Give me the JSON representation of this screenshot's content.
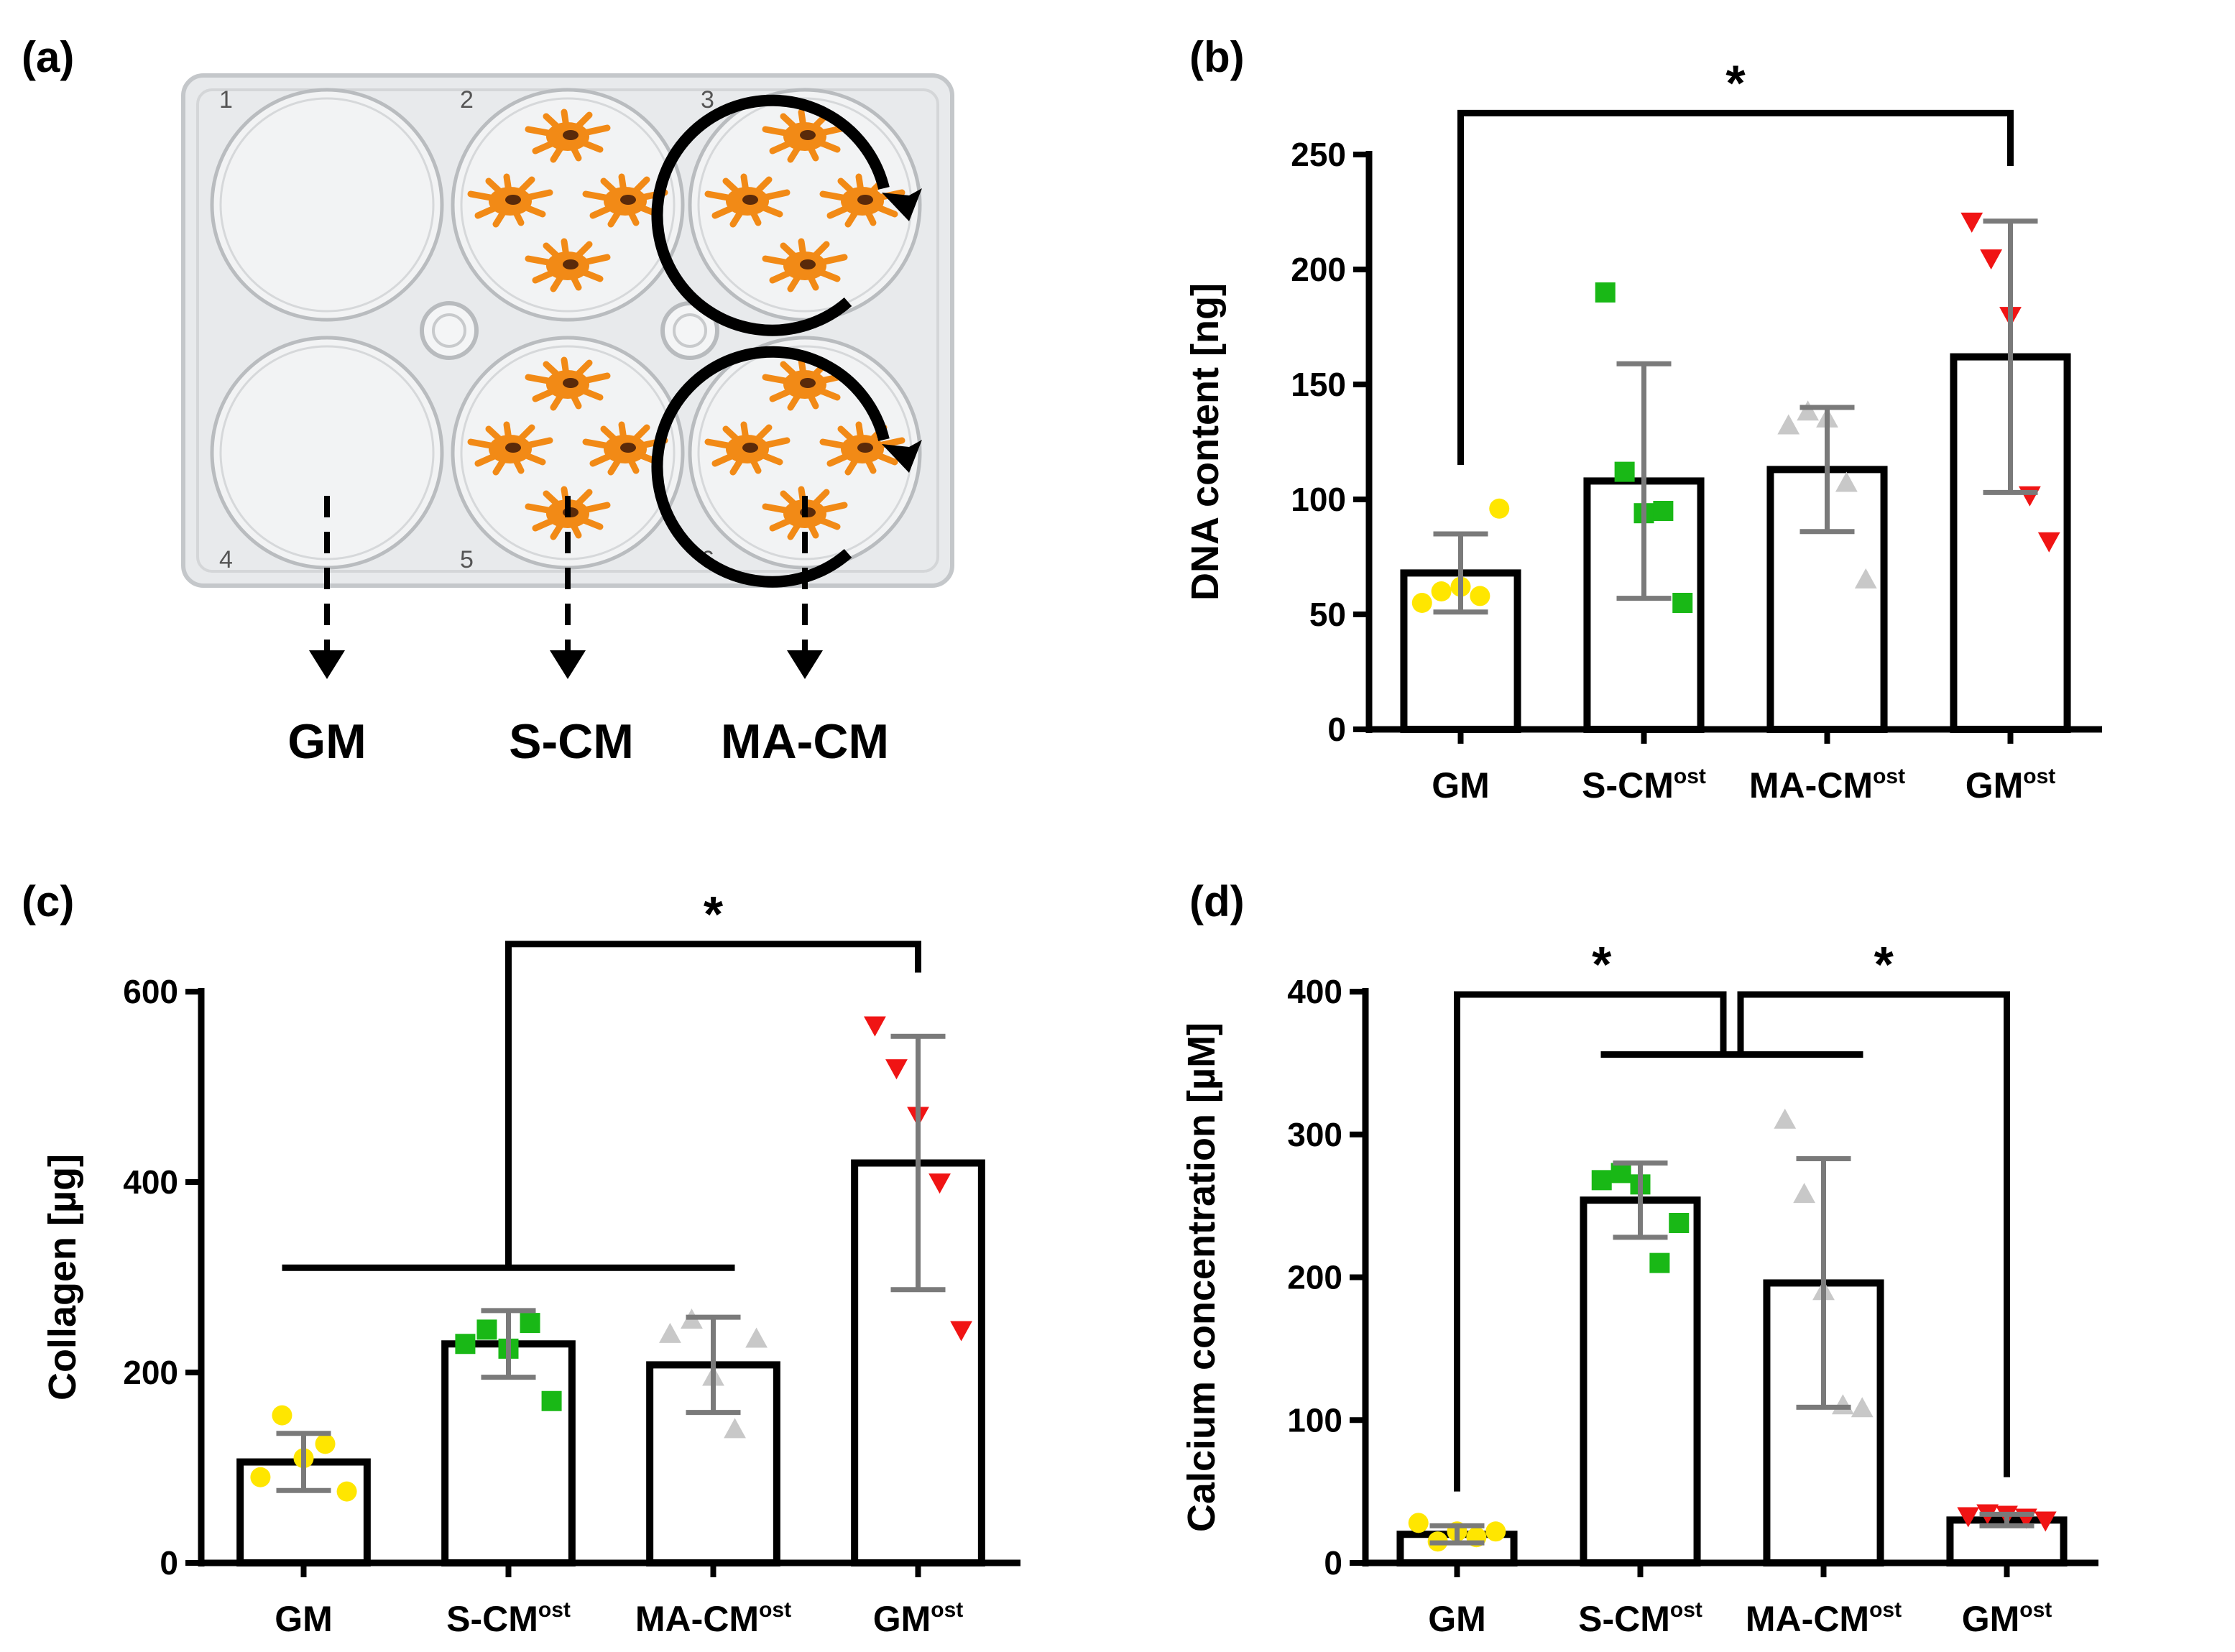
{
  "panels": {
    "a": "(a)",
    "b": "(b)",
    "c": "(c)",
    "d": "(d)"
  },
  "plate": {
    "well_numbers": [
      "1",
      "2",
      "3",
      "4",
      "5",
      "6"
    ],
    "media_labels": [
      "GM",
      "S-CM",
      "MA-CM"
    ],
    "colors": {
      "cell": "#f28a16",
      "nucleus": "#5a2a0a",
      "plate": "#e4e6e8"
    },
    "cells_per_well": 4
  },
  "colors": {
    "GM": "#ffe600",
    "S-CM": "#19b816",
    "MA-CM": "#c8c8c8",
    "GMost": "#f01414",
    "errorbar": "#7a7a7a",
    "axis": "#000000"
  },
  "chart_data": [
    {
      "id": "b",
      "type": "bar",
      "ylabel": "DNA content [ng]",
      "ylim": [
        0,
        250
      ],
      "yticks": [
        0,
        50,
        100,
        150,
        200,
        250
      ],
      "categories": [
        {
          "base": "GM",
          "sup": ""
        },
        {
          "base": "S-CM",
          "sup": "ost"
        },
        {
          "base": "MA-CM",
          "sup": "ost"
        },
        {
          "base": "GM",
          "sup": "ost"
        }
      ],
      "values": [
        68,
        108,
        113,
        162
      ],
      "sd": [
        17,
        51,
        27,
        59
      ],
      "points": [
        [
          55,
          60,
          62,
          58,
          96
        ],
        [
          190,
          112,
          94,
          95,
          55
        ],
        [
          132,
          138,
          135,
          107,
          65
        ],
        [
          221,
          205,
          180,
          102,
          82
        ]
      ],
      "markers": [
        "circle",
        "square",
        "triangle-up",
        "triangle-down"
      ],
      "significance": [
        {
          "from": 0,
          "to": 3,
          "label": "*",
          "y": 268,
          "legs_to": [
            115,
            245
          ]
        }
      ]
    },
    {
      "id": "c",
      "type": "bar",
      "ylabel": "Collagen [µg]",
      "ylim": [
        0,
        600
      ],
      "yticks": [
        0,
        200,
        400,
        600
      ],
      "categories": [
        {
          "base": "GM",
          "sup": ""
        },
        {
          "base": "S-CM",
          "sup": "ost"
        },
        {
          "base": "MA-CM",
          "sup": "ost"
        },
        {
          "base": "GM",
          "sup": "ost"
        }
      ],
      "values": [
        106,
        230,
        208,
        420
      ],
      "sd": [
        30,
        35,
        50,
        133
      ],
      "points": [
        [
          90,
          155,
          110,
          125,
          75
        ],
        [
          230,
          245,
          225,
          252,
          170
        ],
        [
          240,
          255,
          195,
          140,
          235
        ],
        [
          565,
          520,
          470,
          400,
          245
        ]
      ],
      "markers": [
        "circle",
        "square",
        "triangle-up",
        "triangle-down"
      ],
      "significance": [
        {
          "group_from": 0,
          "group_to": 2,
          "group_y": 310,
          "target": 3,
          "label": "*",
          "y": 650,
          "target_leg_to": 620
        }
      ]
    },
    {
      "id": "d",
      "type": "bar",
      "ylabel": "Calcium concentration [µM]",
      "ylim": [
        0,
        400
      ],
      "yticks": [
        0,
        100,
        200,
        300,
        400
      ],
      "categories": [
        {
          "base": "GM",
          "sup": ""
        },
        {
          "base": "S-CM",
          "sup": "ost"
        },
        {
          "base": "MA-CM",
          "sup": "ost"
        },
        {
          "base": "GM",
          "sup": "ost"
        }
      ],
      "values": [
        20,
        254,
        196,
        30
      ],
      "sd": [
        6,
        26,
        87,
        4
      ],
      "points": [
        [
          28,
          15,
          22,
          18,
          22
        ],
        [
          268,
          273,
          265,
          210,
          238
        ],
        [
          310,
          258,
          190,
          110,
          108
        ],
        [
          33,
          35,
          34,
          32,
          30
        ]
      ],
      "markers": [
        "circle",
        "square",
        "triangle-up",
        "triangle-down"
      ],
      "significance": [
        {
          "group_from": 1,
          "group_to": 2,
          "group_y": 356,
          "left": 0,
          "right": 3,
          "label": "*",
          "y": 398,
          "leg_to": [
            50,
            60
          ]
        }
      ]
    }
  ]
}
